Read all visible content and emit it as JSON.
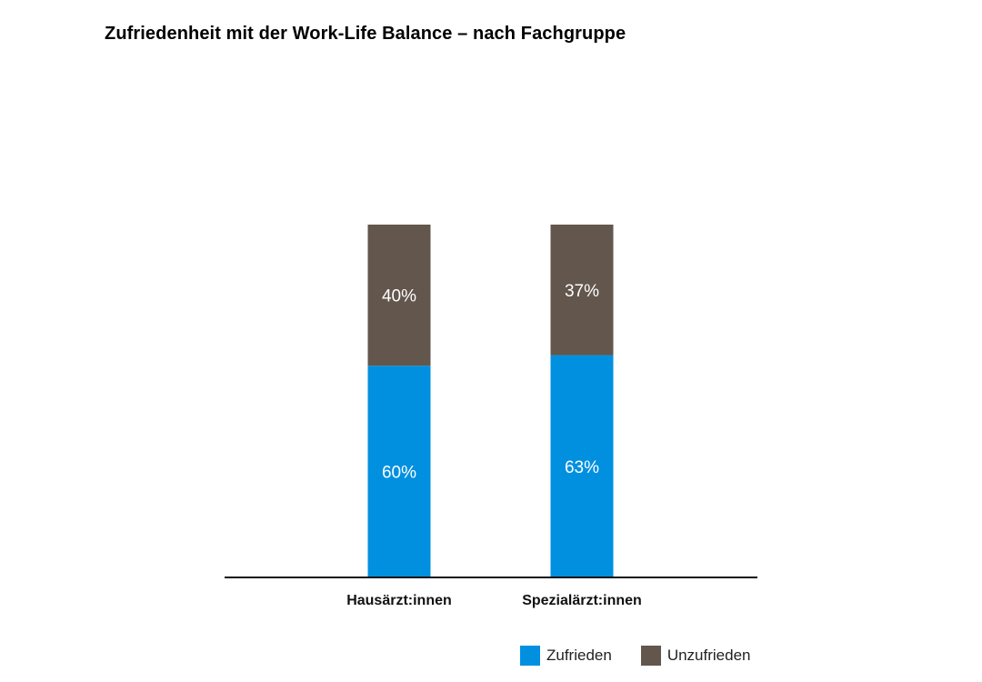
{
  "title": "Zufriedenheit mit der Work-Life Balance – nach Fachgruppe",
  "chart_data": {
    "type": "bar",
    "stacked": true,
    "percent_stacked": true,
    "title": "Zufriedenheit mit der Work-Life Balance – nach Fachgruppe",
    "categories": [
      "Hausärzt:innen",
      "Spezialärzt:innen"
    ],
    "series": [
      {
        "name": "Zufrieden",
        "values": [
          60,
          63
        ],
        "color": "#0090df",
        "labels": [
          "60%",
          "63%"
        ]
      },
      {
        "name": "Unzufrieden",
        "values": [
          40,
          37
        ],
        "color": "#62564d",
        "labels": [
          "40%",
          "37%"
        ]
      }
    ],
    "ylim": [
      0,
      100
    ],
    "xlabel": "",
    "ylabel": "",
    "grid": false,
    "legend_position": "bottom-right"
  }
}
